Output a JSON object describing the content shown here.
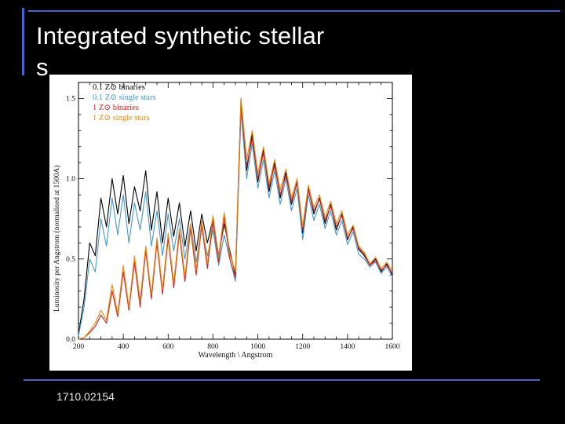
{
  "slide": {
    "title_line1": "Integrated synthetic stellar",
    "title_line2": "s",
    "footer": "1710.02154",
    "accent_color": "#4463d0"
  },
  "chart_data": {
    "type": "line",
    "title": "",
    "xlabel": "Wavelength \\ Angstrom",
    "ylabel": "Luminosity per Angstrom (normalised at 1500A)",
    "xlim": [
      200,
      1600
    ],
    "ylim": [
      0,
      1.6
    ],
    "x_ticks": [
      200,
      400,
      600,
      800,
      1000,
      1200,
      1400,
      1600
    ],
    "y_ticks": [
      0.0,
      0.5,
      1.0,
      1.5
    ],
    "grid": false,
    "legend_position": "top-left",
    "x": [
      200,
      225,
      250,
      275,
      300,
      325,
      350,
      375,
      400,
      425,
      450,
      475,
      500,
      525,
      550,
      575,
      600,
      625,
      650,
      675,
      700,
      725,
      750,
      775,
      800,
      825,
      850,
      875,
      900,
      925,
      950,
      975,
      1000,
      1025,
      1050,
      1075,
      1100,
      1125,
      1150,
      1175,
      1200,
      1225,
      1250,
      1275,
      1300,
      1325,
      1350,
      1375,
      1400,
      1425,
      1450,
      1475,
      1500,
      1525,
      1550,
      1575,
      1600
    ],
    "series": [
      {
        "name": "0.1 Z⊙ binaries",
        "color": "#000000",
        "values": [
          0.03,
          0.25,
          0.6,
          0.52,
          0.88,
          0.7,
          1.0,
          0.78,
          1.02,
          0.72,
          0.95,
          0.8,
          1.05,
          0.68,
          0.92,
          0.6,
          0.88,
          0.64,
          0.85,
          0.58,
          0.8,
          0.55,
          0.78,
          0.6,
          0.75,
          0.52,
          0.72,
          0.55,
          0.4,
          1.5,
          1.05,
          1.28,
          0.98,
          1.18,
          0.92,
          1.1,
          0.88,
          1.04,
          0.84,
          0.98,
          0.66,
          0.94,
          0.78,
          0.88,
          0.72,
          0.84,
          0.68,
          0.78,
          0.62,
          0.7,
          0.56,
          0.52,
          0.46,
          0.5,
          0.42,
          0.47,
          0.4
        ]
      },
      {
        "name": "0.1 Z⊙ single stars",
        "color": "#4596d1",
        "values": [
          0.02,
          0.2,
          0.5,
          0.42,
          0.75,
          0.58,
          0.88,
          0.65,
          0.9,
          0.6,
          0.85,
          0.68,
          0.92,
          0.58,
          0.8,
          0.52,
          0.78,
          0.55,
          0.75,
          0.5,
          0.72,
          0.48,
          0.7,
          0.52,
          0.68,
          0.46,
          0.65,
          0.5,
          0.36,
          1.42,
          1.0,
          1.22,
          0.94,
          1.12,
          0.88,
          1.05,
          0.84,
          1.0,
          0.8,
          0.94,
          0.62,
          0.9,
          0.74,
          0.84,
          0.69,
          0.8,
          0.65,
          0.74,
          0.59,
          0.67,
          0.53,
          0.5,
          0.45,
          0.48,
          0.41,
          0.45,
          0.39
        ]
      },
      {
        "name": "1 Z⊙ binaries",
        "color": "#cc2222",
        "values": [
          0.0,
          0.01,
          0.04,
          0.08,
          0.15,
          0.1,
          0.3,
          0.14,
          0.42,
          0.18,
          0.48,
          0.2,
          0.55,
          0.25,
          0.6,
          0.28,
          0.63,
          0.32,
          0.66,
          0.36,
          0.69,
          0.4,
          0.71,
          0.44,
          0.73,
          0.48,
          0.76,
          0.5,
          0.38,
          1.46,
          1.08,
          1.25,
          1.0,
          1.16,
          0.95,
          1.08,
          0.9,
          1.02,
          0.86,
          0.97,
          0.68,
          0.93,
          0.8,
          0.87,
          0.74,
          0.83,
          0.7,
          0.77,
          0.63,
          0.69,
          0.57,
          0.53,
          0.46,
          0.49,
          0.43,
          0.46,
          0.41
        ]
      },
      {
        "name": "1 Z⊙ single stars",
        "color": "#e8860f",
        "values": [
          0.0,
          0.01,
          0.05,
          0.1,
          0.18,
          0.12,
          0.34,
          0.16,
          0.46,
          0.2,
          0.52,
          0.24,
          0.58,
          0.28,
          0.63,
          0.31,
          0.66,
          0.35,
          0.69,
          0.39,
          0.72,
          0.43,
          0.74,
          0.47,
          0.77,
          0.51,
          0.79,
          0.53,
          0.42,
          1.5,
          1.12,
          1.3,
          1.03,
          1.2,
          0.97,
          1.12,
          0.93,
          1.06,
          0.88,
          1.0,
          0.7,
          0.96,
          0.82,
          0.9,
          0.76,
          0.86,
          0.72,
          0.8,
          0.65,
          0.71,
          0.58,
          0.54,
          0.47,
          0.51,
          0.44,
          0.48,
          0.42
        ]
      }
    ]
  }
}
